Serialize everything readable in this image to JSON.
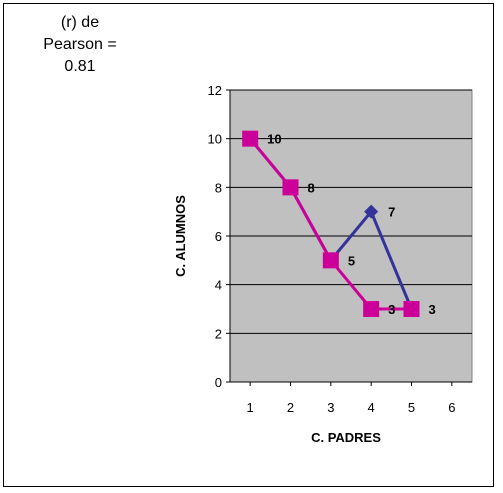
{
  "note": {
    "line1": "(r) de",
    "line2": "Pearson =",
    "line3": "0.81"
  },
  "chart_data": {
    "type": "line",
    "title": "",
    "xlabel": "C. PADRES",
    "ylabel": "C. ALUMNOS",
    "xlim": [
      0.5,
      6.5
    ],
    "ylim": [
      0,
      12
    ],
    "xticks": [
      1,
      2,
      3,
      4,
      5,
      6
    ],
    "yticks": [
      0,
      2,
      4,
      6,
      8,
      10,
      12
    ],
    "grid": "horizontal",
    "legend": "none",
    "plot_bg": "#c0c0c0",
    "series": [
      {
        "marker": "diamond",
        "color": "#333399",
        "x": [
          1,
          2,
          3,
          4,
          5
        ],
        "y": [
          10,
          8,
          5,
          7,
          3
        ],
        "labels": [
          "",
          "",
          "",
          "7",
          ""
        ]
      },
      {
        "marker": "square",
        "color": "#cc0099",
        "x": [
          1,
          2,
          3,
          4,
          5
        ],
        "y": [
          10,
          8,
          5,
          3,
          3
        ],
        "labels": [
          "10",
          "8",
          "5",
          "3",
          "3"
        ]
      }
    ]
  }
}
